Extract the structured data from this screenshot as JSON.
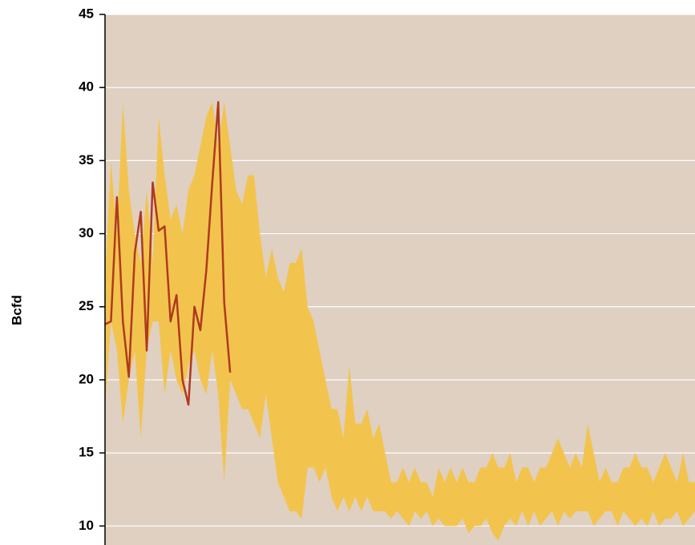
{
  "chart_data": {
    "type": "line",
    "y_label": "Bcfd",
    "background": "#dfd0c2",
    "grid": true,
    "ylim": [
      8.7,
      45
    ],
    "yticks": [
      10,
      15,
      20,
      25,
      30,
      35,
      40,
      45
    ],
    "categories": [
      null,
      null,
      null,
      null,
      null,
      null,
      null,
      null,
      null,
      null,
      null,
      null,
      null,
      null,
      null,
      null,
      null,
      null,
      null,
      null,
      null,
      null,
      null,
      null,
      null,
      null,
      null,
      null,
      null,
      null,
      null,
      null,
      null,
      null,
      null,
      null,
      null,
      null,
      null,
      null,
      null,
      null,
      null,
      null,
      null,
      null,
      null,
      null,
      null,
      null,
      null,
      null,
      null,
      null,
      null,
      null,
      null,
      null,
      null,
      null,
      null,
      null,
      null,
      null,
      null,
      null,
      null,
      null,
      null,
      null,
      null,
      null,
      null,
      null,
      null,
      null,
      null,
      null,
      null,
      null,
      null,
      null,
      null,
      null,
      null,
      null,
      null,
      null,
      null,
      null,
      null,
      null,
      null,
      null,
      null,
      null,
      null,
      null,
      null,
      null
    ],
    "band": {
      "color": "#f2c44e",
      "high": [
        27,
        35,
        30,
        39,
        33,
        30,
        28,
        33,
        28,
        38,
        34,
        31,
        32,
        30,
        33,
        34,
        36,
        38,
        39,
        36,
        39,
        36,
        33,
        32,
        34,
        34,
        30,
        27,
        29,
        27,
        26,
        28,
        28,
        29,
        25,
        24,
        22,
        20,
        18,
        18,
        16,
        21,
        17,
        17,
        18,
        16,
        17,
        15,
        13,
        13,
        14,
        13,
        14,
        13,
        13,
        12,
        14,
        13,
        14,
        13,
        14,
        13,
        13,
        14,
        14,
        15,
        14,
        14,
        15,
        13,
        14,
        14,
        13,
        14,
        14,
        15,
        16,
        15,
        14,
        15,
        14,
        17,
        15,
        13,
        14,
        13,
        13,
        14,
        14,
        15,
        14,
        14,
        13,
        14,
        15,
        14,
        13,
        15,
        13,
        13
      ],
      "low": [
        18,
        24,
        22,
        17,
        20,
        22,
        16,
        22,
        24,
        24,
        19,
        22,
        20,
        19,
        21,
        22,
        20,
        19,
        22,
        19,
        13,
        20,
        19,
        18,
        18,
        17,
        16,
        19,
        16,
        13,
        12,
        11,
        11,
        10.5,
        14,
        14,
        13,
        14,
        12,
        11,
        12,
        11,
        12,
        11,
        12,
        11,
        11,
        11,
        10.5,
        11,
        10.5,
        10,
        11,
        10.5,
        11,
        10,
        10.5,
        10,
        10,
        10,
        10.5,
        9.5,
        10,
        10,
        10.5,
        9.5,
        9,
        10,
        10.5,
        10,
        11,
        10,
        11,
        10,
        10.5,
        11,
        10,
        11,
        10.5,
        11,
        11,
        11,
        10,
        10.5,
        11,
        11,
        10,
        11,
        10.5,
        10,
        10.5,
        10,
        11,
        10,
        10.5,
        10.5,
        11,
        10,
        10.5,
        11
      ]
    },
    "series": [
      {
        "color": "#b0391e",
        "values": [
          23.8,
          24,
          32.5,
          24,
          20.2,
          28.7,
          31.5,
          22,
          33.5,
          30.2,
          30.5,
          24,
          25.8,
          20,
          18.3,
          25,
          23.4,
          27.5,
          33.5,
          39,
          25.3,
          20.5,
          null,
          null,
          null,
          null,
          null,
          null,
          null,
          null,
          null,
          null,
          null,
          null,
          null,
          null,
          null,
          null,
          null,
          null,
          null,
          null,
          null,
          null,
          null,
          null,
          null,
          null,
          null,
          null,
          null,
          null,
          null,
          null,
          null,
          null,
          null,
          null,
          null,
          null,
          null,
          null,
          null,
          null,
          null,
          null,
          null,
          null,
          null,
          null,
          null,
          null,
          null,
          null,
          null,
          null,
          null,
          null,
          null,
          null,
          null,
          null,
          null,
          null,
          null,
          null,
          null,
          null,
          null,
          null,
          null,
          null,
          null,
          null,
          null,
          null,
          null,
          null,
          null,
          null
        ]
      }
    ]
  }
}
